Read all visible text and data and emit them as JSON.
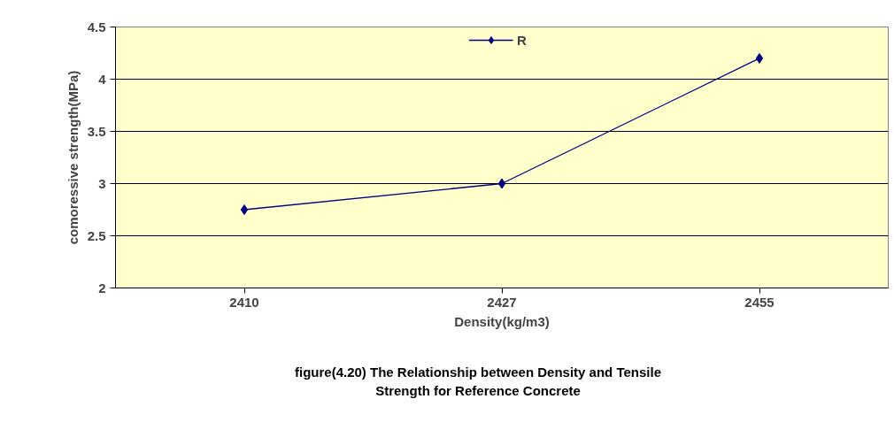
{
  "chart_data": {
    "type": "line",
    "categories": [
      "2410",
      "2427",
      "2455"
    ],
    "series": [
      {
        "name": "R",
        "color": "#000080",
        "values": [
          2.75,
          3.0,
          4.2
        ]
      }
    ],
    "xlabel": "Density(kg/m3)",
    "ylabel": "comoressive strength(MPa)",
    "ylim": [
      2,
      4.5
    ],
    "yticks": [
      2,
      2.5,
      3,
      3.5,
      4,
      4.5
    ],
    "grid": "y",
    "legend": "top",
    "marker": "diamond",
    "line_style": "solid",
    "annotations": [
      "figure(4.20) The Relationship between Density and Tensile Strength for Reference Concrete"
    ]
  }
}
